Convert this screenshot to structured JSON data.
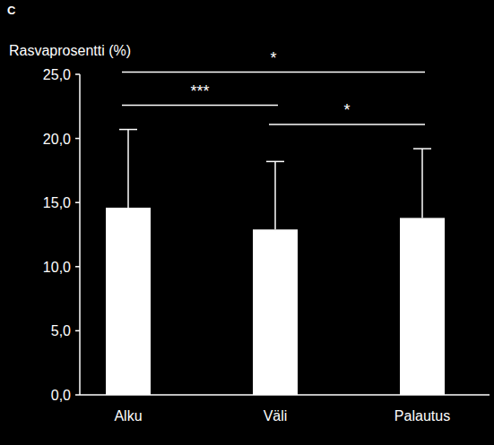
{
  "chart_data": {
    "type": "bar",
    "title": "C",
    "y_label": "Rasvaprosentti (%)",
    "categories": [
      "Alku",
      "Väli",
      "Palautus"
    ],
    "values": [
      14.6,
      12.9,
      13.8
    ],
    "errors": [
      6.1,
      5.3,
      5.4
    ],
    "color": "#ffffff",
    "ylim": [
      0,
      25
    ],
    "yticks": [
      {
        "value": 0,
        "label": "0,0"
      },
      {
        "value": 5,
        "label": "5,0"
      },
      {
        "value": 10,
        "label": "10,0"
      },
      {
        "value": 15,
        "label": "15,0"
      },
      {
        "value": 20,
        "label": "20,0"
      },
      {
        "value": 25,
        "label": "25,0"
      }
    ],
    "grid": false,
    "annotations": [
      {
        "text": "***",
        "from": "Alku",
        "to": "Väli"
      },
      {
        "text": "*",
        "from": "Väli",
        "to": "Palautus"
      },
      {
        "text": "*",
        "from": "Alku",
        "to": "Palautus"
      }
    ]
  }
}
